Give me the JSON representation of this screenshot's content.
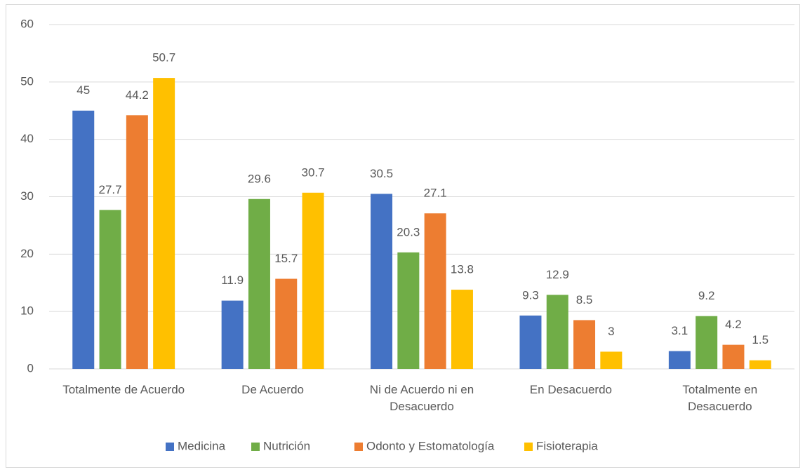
{
  "chart_data": {
    "type": "bar",
    "categories": [
      "Totalmente de Acuerdo",
      "De Acuerdo",
      "Ni de Acuerdo ni en Desacuerdo",
      "En Desacuerdo",
      "Totalmente en Desacuerdo"
    ],
    "series": [
      {
        "name": "Medicina",
        "color": "#4472c4",
        "values": [
          45,
          11.9,
          30.5,
          9.3,
          3.1
        ]
      },
      {
        "name": "Nutrición",
        "color": "#70ad47",
        "values": [
          27.7,
          29.6,
          20.3,
          12.9,
          9.2
        ]
      },
      {
        "name": "Odonto y Estomatología",
        "color": "#ed7d31",
        "values": [
          44.2,
          15.7,
          27.1,
          8.5,
          4.2
        ]
      },
      {
        "name": "Fisioterapia",
        "color": "#ffc000",
        "values": [
          50.7,
          30.7,
          13.8,
          3,
          1.5
        ]
      }
    ],
    "ylim": [
      0,
      60
    ],
    "yticks": [
      0,
      10,
      20,
      30,
      40,
      50,
      60
    ],
    "grid": true,
    "legend": "bottom"
  }
}
